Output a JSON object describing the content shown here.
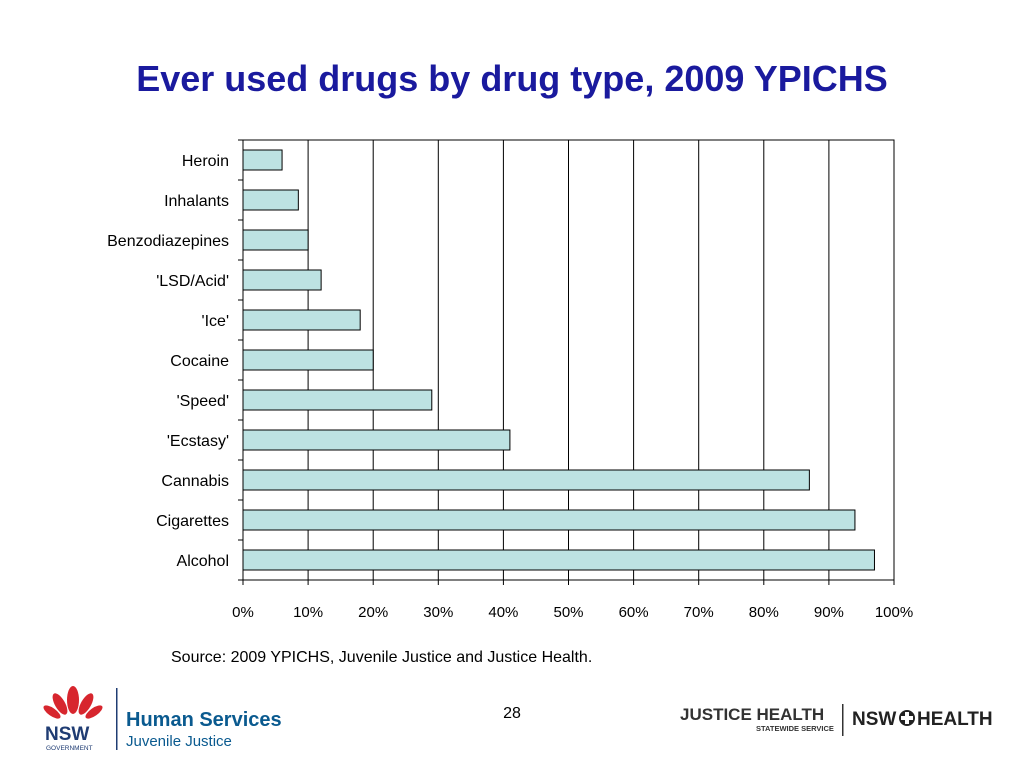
{
  "slide": {
    "title": "Ever used drugs by drug type, 2009 YPICHS",
    "source": "Source: 2009 YPICHS, Juvenile Justice and Justice Health.",
    "page_number": "28"
  },
  "logos": {
    "left_gov": "NSW",
    "left_gov_sub": "GOVERNMENT",
    "left_org": "Human Services",
    "left_org_sub": "Juvenile Justice",
    "right_org": "JUSTICE HEALTH",
    "right_org_sub": "STATEWIDE SERVICE",
    "right_org2": "NSW",
    "right_org2b": "HEALTH"
  },
  "colors": {
    "title": "#1a1a9e",
    "bar_fill": "#bde3e3",
    "bar_stroke": "#000000",
    "nsw_red": "#d7262e",
    "nsw_blue": "#1f3c73",
    "logo_teal": "#0a5a8f"
  },
  "chart_data": {
    "type": "bar",
    "orientation": "horizontal",
    "categories": [
      "Heroin",
      "Inhalants",
      "Benzodiazepines",
      "'LSD/Acid'",
      "'Ice'",
      "Cocaine",
      "'Speed'",
      "'Ecstasy'",
      "Cannabis",
      "Cigarettes",
      "Alcohol"
    ],
    "values": [
      6,
      8.5,
      10,
      12,
      18,
      20,
      29,
      41,
      87,
      94,
      97
    ],
    "xlim": [
      0,
      100
    ],
    "xticks": [
      "0%",
      "10%",
      "20%",
      "30%",
      "40%",
      "50%",
      "60%",
      "70%",
      "80%",
      "90%",
      "100%"
    ],
    "grid": "vertical",
    "legend": "none"
  }
}
